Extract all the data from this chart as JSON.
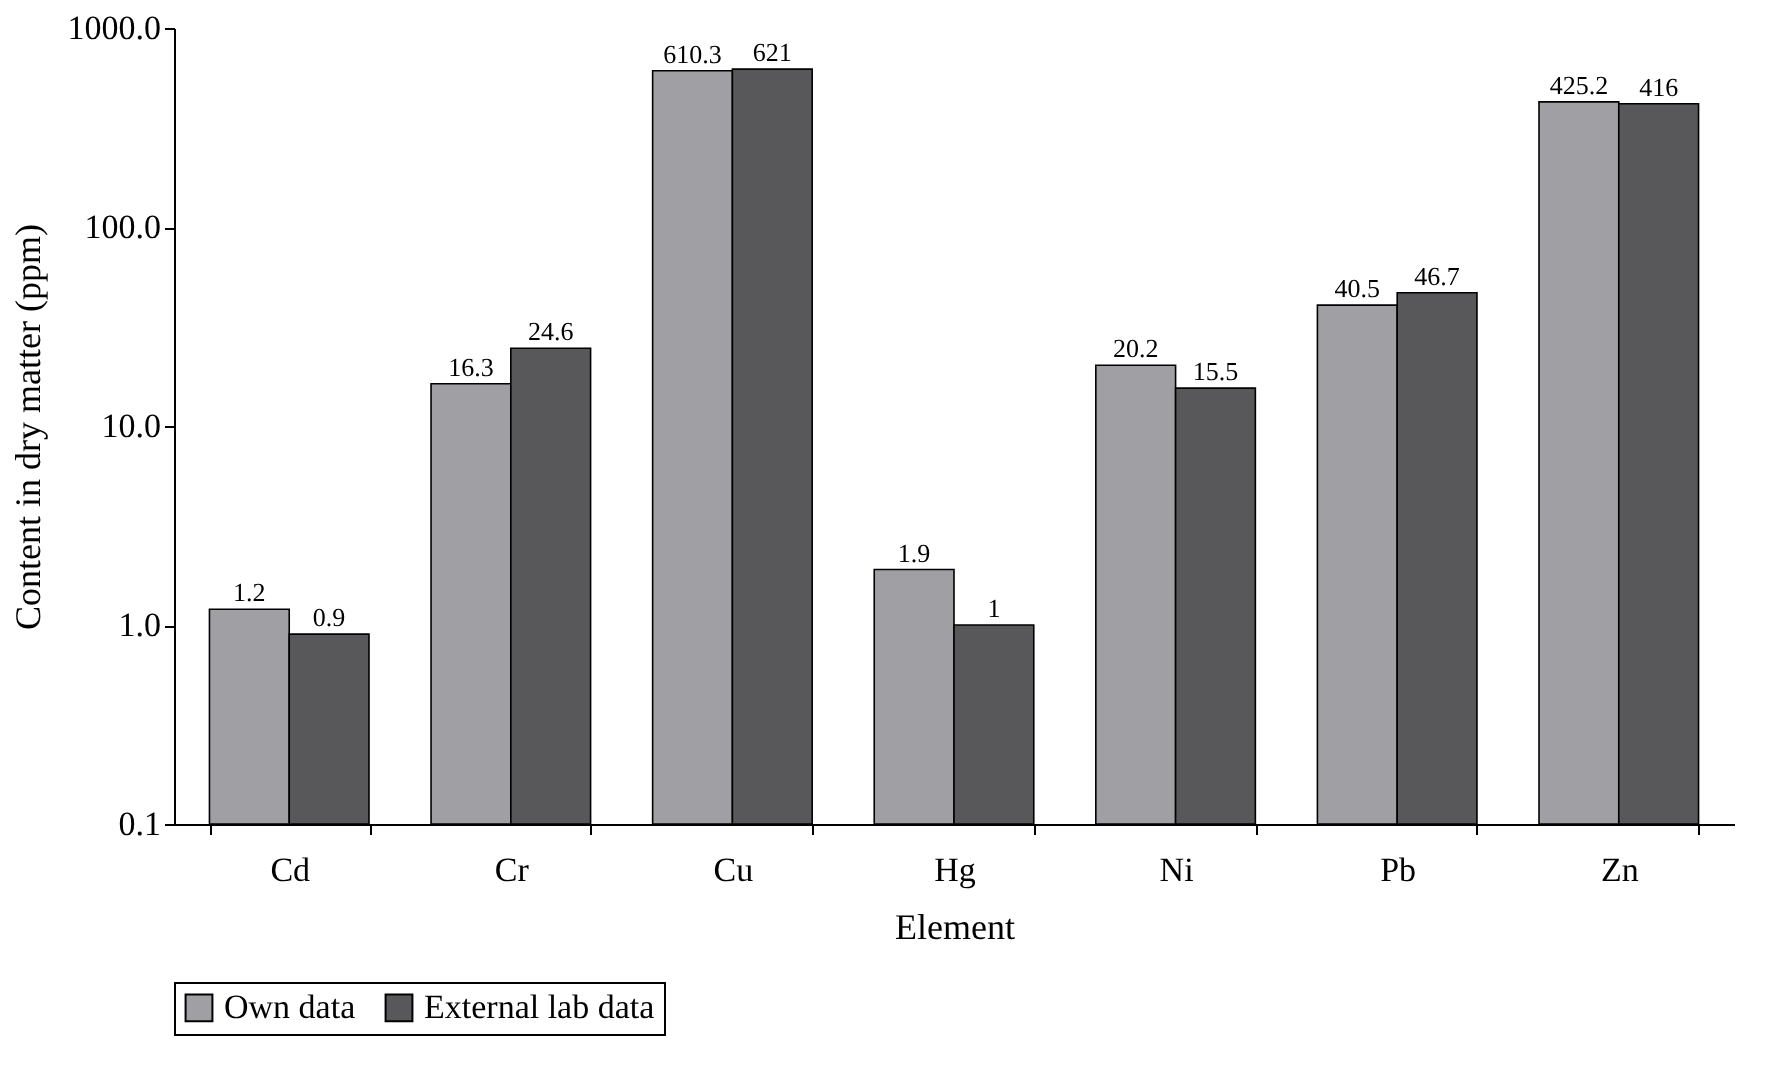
{
  "chart_data": {
    "type": "bar",
    "xlabel": "Element",
    "ylabel": "Content in dry matter (ppm)",
    "categories": [
      "Cd",
      "Cr",
      "Cu",
      "Hg",
      "Ni",
      "Pb",
      "Zn"
    ],
    "series": [
      {
        "name": "Own data",
        "color": "#a0a0a4",
        "values": [
          1.2,
          16.3,
          610.3,
          1.9,
          20.2,
          40.5,
          425.2
        ]
      },
      {
        "name": "External lab data",
        "color": "#58585a",
        "values": [
          0.9,
          24.6,
          621,
          1,
          15.5,
          46.7,
          416
        ]
      }
    ],
    "log": true,
    "ylim": [
      0.1,
      1000
    ],
    "yticks": [
      {
        "value": 0.1,
        "label": "0.1"
      },
      {
        "value": 1,
        "label": "1.0"
      },
      {
        "value": 10,
        "label": "10.0"
      },
      {
        "value": 100,
        "label": "100.0"
      },
      {
        "value": 1000,
        "label": "1000.0"
      }
    ],
    "data_labels": true,
    "grid": false,
    "legend": "bottom"
  }
}
